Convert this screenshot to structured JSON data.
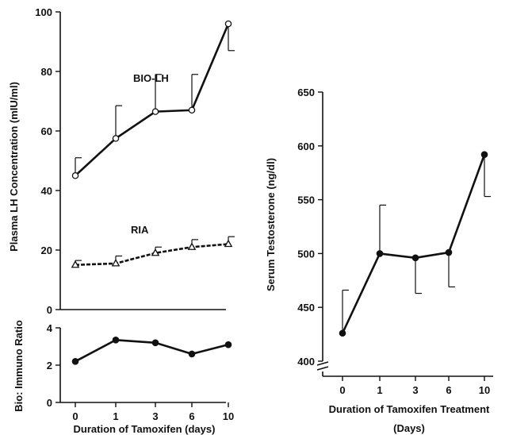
{
  "chart_data": [
    {
      "type": "line",
      "ylabel": "Plasma LH Concentration (mIU/ml)",
      "ylim": [
        0,
        100
      ],
      "yticks": [
        "0",
        "20",
        "40",
        "60",
        "80",
        "100"
      ],
      "categories": [
        "0",
        "1",
        "3",
        "6",
        "10"
      ],
      "series": [
        {
          "name": "BIO-LH",
          "marker": "open-circle",
          "line": "solid",
          "values": [
            45,
            57.5,
            66.5,
            67,
            96
          ],
          "error_upper": [
            51,
            68.5,
            79,
            79,
            96
          ],
          "error_lower": [
            45,
            57.5,
            66.5,
            67,
            87
          ]
        },
        {
          "name": "RIA",
          "marker": "open-triangle",
          "line": "dashed",
          "values": [
            15,
            15.5,
            19,
            21,
            22
          ],
          "error_upper": [
            16.5,
            18,
            21,
            23.5,
            24.5
          ],
          "error_lower": [
            15,
            15.5,
            19,
            21,
            22
          ]
        }
      ]
    },
    {
      "type": "line",
      "ylabel": "Bio: Immuno Ratio",
      "ylim": [
        0,
        4
      ],
      "yticks": [
        "0",
        "2",
        "4"
      ],
      "xlabel": "Duration of Tamoxifen (days)",
      "categories": [
        "0",
        "1",
        "3",
        "6",
        "10"
      ],
      "series": [
        {
          "marker": "filled-circle",
          "line": "solid",
          "values": [
            2.2,
            3.35,
            3.2,
            2.6,
            3.1
          ]
        }
      ]
    },
    {
      "type": "line",
      "ylabel": "Serum Testosterone (ng/dl)",
      "ylim": [
        400,
        650
      ],
      "axis_break": true,
      "yticks": [
        "400",
        "450",
        "500",
        "550",
        "600",
        "650"
      ],
      "xlabel": "Duration of Tamoxifen Treatment",
      "xlabel_line2": "(Days)",
      "categories": [
        "0",
        "1",
        "3",
        "6",
        "10"
      ],
      "series": [
        {
          "marker": "filled-circle",
          "line": "solid",
          "values": [
            426,
            500,
            496,
            501,
            592
          ],
          "error_upper": [
            466,
            545,
            496,
            501,
            592
          ],
          "error_lower": [
            426,
            500,
            463,
            469,
            553
          ]
        }
      ]
    }
  ]
}
